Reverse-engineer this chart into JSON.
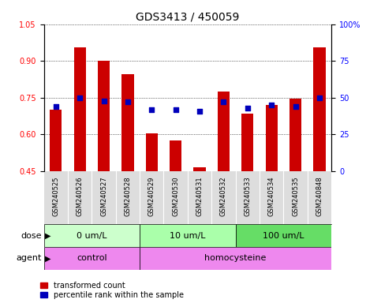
{
  "title": "GDS3413 / 450059",
  "samples": [
    "GSM240525",
    "GSM240526",
    "GSM240527",
    "GSM240528",
    "GSM240529",
    "GSM240530",
    "GSM240531",
    "GSM240532",
    "GSM240533",
    "GSM240534",
    "GSM240535",
    "GSM240848"
  ],
  "transformed_count": [
    0.7,
    0.955,
    0.9,
    0.845,
    0.605,
    0.575,
    0.465,
    0.775,
    0.685,
    0.72,
    0.745,
    0.955
  ],
  "percentile_rank": [
    44,
    50,
    48,
    47,
    42,
    42,
    41,
    47,
    43,
    45,
    44,
    50
  ],
  "ylim_left": [
    0.45,
    1.05
  ],
  "ylim_right": [
    0,
    100
  ],
  "yticks_left": [
    0.45,
    0.6,
    0.75,
    0.9,
    1.05
  ],
  "yticks_right": [
    0,
    25,
    50,
    75,
    100
  ],
  "bar_color": "#cc0000",
  "dot_color": "#0000bb",
  "dose_colors": [
    "#ccffcc",
    "#aaffaa",
    "#66dd66"
  ],
  "dose_groups": [
    {
      "label": "0 um/L",
      "start": 0,
      "end": 4
    },
    {
      "label": "10 um/L",
      "start": 4,
      "end": 8
    },
    {
      "label": "100 um/L",
      "start": 8,
      "end": 12
    }
  ],
  "agent_starts": [
    0,
    4
  ],
  "agent_ends": [
    4,
    12
  ],
  "agent_labels": [
    "control",
    "homocysteine"
  ],
  "agent_color": "#ee88ee",
  "dose_label": "dose",
  "agent_label": "agent",
  "legend_bar_label": "transformed count",
  "legend_dot_label": "percentile rank within the sample",
  "title_fontsize": 10,
  "tick_fontsize": 7,
  "bar_fontsize": 7,
  "annot_fontsize": 8
}
